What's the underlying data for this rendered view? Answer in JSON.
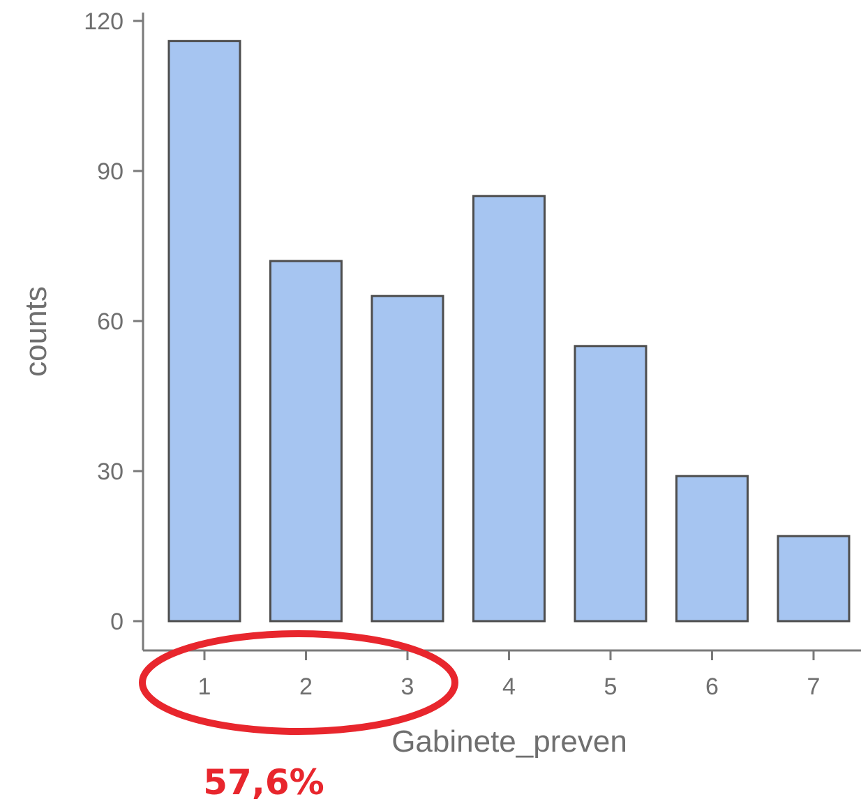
{
  "chart_data": {
    "type": "bar",
    "categories": [
      "1",
      "2",
      "3",
      "4",
      "5",
      "6",
      "7"
    ],
    "values": [
      116,
      72,
      65,
      85,
      55,
      29,
      17
    ],
    "title": "",
    "xlabel": "Gabinete_preven",
    "ylabel": "counts",
    "ylim": [
      0,
      120
    ],
    "yticks": [
      "0",
      "30",
      "60",
      "90",
      "120"
    ],
    "grid": false,
    "bar_color": "#a6c5f1",
    "bar_edge_color": "#4d4d4d",
    "axis_color": "#7a7a7a",
    "annotation": {
      "text": "57,6%",
      "color": "#e8262d",
      "shape": "ellipse-around-categories",
      "covers_categories": [
        "1",
        "2",
        "3"
      ]
    }
  }
}
